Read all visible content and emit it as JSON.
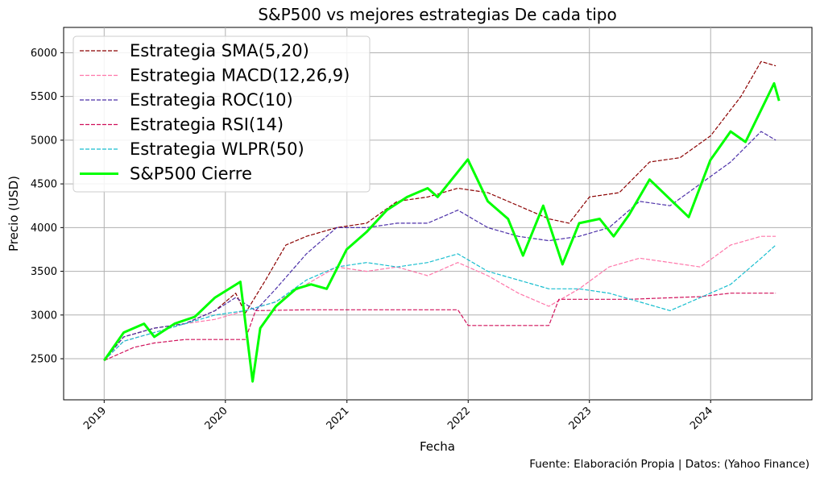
{
  "chart_data": {
    "type": "line",
    "title": "S&P500 vs mejores estrategias De cada tipo",
    "xlabel": "Fecha",
    "ylabel": "Precio (USD)",
    "source": "Fuente: Elaboración Propia | Datos: (Yahoo Finance)",
    "xlim": [
      "2018-09-01",
      "2024-11-01"
    ],
    "ylim": [
      2030,
      6290
    ],
    "x_ticks": [
      "2019",
      "2020",
      "2021",
      "2022",
      "2023",
      "2024"
    ],
    "y_ticks": [
      2500,
      3000,
      3500,
      4000,
      4500,
      5000,
      5500,
      6000
    ],
    "grid": true,
    "legend_position": "top-left",
    "series": [
      {
        "name": "Estrategia SMA(5,20)",
        "color": "#8b0000",
        "style": "dashed",
        "x": [
          "2019-01-01",
          "2019-03-01",
          "2019-06-01",
          "2019-09-01",
          "2019-12-01",
          "2020-02-01",
          "2020-03-01",
          "2020-05-01",
          "2020-07-01",
          "2020-09-01",
          "2020-12-01",
          "2021-03-01",
          "2021-06-01",
          "2021-09-01",
          "2021-12-01",
          "2022-03-01",
          "2022-06-01",
          "2022-09-01",
          "2022-11-01",
          "2023-01-01",
          "2023-04-01",
          "2023-07-01",
          "2023-10-01",
          "2024-01-01",
          "2024-04-01",
          "2024-06-01",
          "2024-07-15"
        ],
        "y": [
          2480,
          2750,
          2850,
          2900,
          3050,
          3250,
          3020,
          3400,
          3800,
          3900,
          4000,
          4050,
          4300,
          4350,
          4450,
          4400,
          4250,
          4100,
          4050,
          4350,
          4400,
          4750,
          4800,
          5050,
          5500,
          5900,
          5850
        ]
      },
      {
        "name": "Estrategia MACD(12,26,9)",
        "color": "#ff77aa",
        "style": "dashed",
        "x": [
          "2019-01-01",
          "2019-03-01",
          "2019-06-01",
          "2019-09-01",
          "2019-12-01",
          "2020-03-01",
          "2020-06-01",
          "2020-09-01",
          "2020-12-01",
          "2021-03-01",
          "2021-06-01",
          "2021-09-01",
          "2021-12-01",
          "2022-03-01",
          "2022-06-01",
          "2022-09-01",
          "2022-12-01",
          "2023-03-01",
          "2023-06-01",
          "2023-09-01",
          "2023-12-01",
          "2024-03-01",
          "2024-06-01",
          "2024-07-15"
        ],
        "y": [
          2480,
          2700,
          2800,
          2900,
          2950,
          3050,
          3150,
          3350,
          3550,
          3500,
          3550,
          3450,
          3600,
          3450,
          3250,
          3100,
          3300,
          3550,
          3650,
          3600,
          3550,
          3800,
          3900,
          3900
        ]
      },
      {
        "name": "Estrategia ROC(10)",
        "color": "#4b2fa8",
        "style": "dashed",
        "x": [
          "2019-01-01",
          "2019-03-01",
          "2019-06-01",
          "2019-09-01",
          "2019-12-01",
          "2020-02-01",
          "2020-04-01",
          "2020-06-01",
          "2020-09-01",
          "2020-12-01",
          "2021-03-01",
          "2021-06-01",
          "2021-09-01",
          "2021-12-01",
          "2022-03-01",
          "2022-06-01",
          "2022-09-01",
          "2022-12-01",
          "2023-03-01",
          "2023-06-01",
          "2023-09-01",
          "2023-12-01",
          "2024-03-01",
          "2024-06-01",
          "2024-07-15"
        ],
        "y": [
          2480,
          2750,
          2850,
          2900,
          3050,
          3200,
          3050,
          3300,
          3700,
          4000,
          4000,
          4050,
          4050,
          4200,
          4000,
          3900,
          3850,
          3900,
          4000,
          4300,
          4250,
          4500,
          4750,
          5100,
          5000
        ]
      },
      {
        "name": "Estrategia RSI(14)",
        "color": "#d0105a",
        "style": "dashed",
        "x": [
          "2019-01-01",
          "2019-04-01",
          "2019-06-01",
          "2019-09-01",
          "2020-03-01",
          "2020-04-01",
          "2020-09-01",
          "2021-12-01",
          "2022-01-01",
          "2022-09-01",
          "2022-10-01",
          "2023-04-01",
          "2023-05-01",
          "2023-12-01",
          "2024-03-01",
          "2024-07-15"
        ],
        "y": [
          2480,
          2630,
          2680,
          2720,
          2720,
          3050,
          3060,
          3060,
          2880,
          2880,
          3180,
          3180,
          3180,
          3210,
          3250,
          3250
        ]
      },
      {
        "name": "Estrategia WLPR(50)",
        "color": "#17becf",
        "style": "dashed",
        "x": [
          "2019-01-01",
          "2019-03-01",
          "2019-06-01",
          "2019-09-01",
          "2019-12-01",
          "2020-03-01",
          "2020-06-01",
          "2020-09-01",
          "2020-12-01",
          "2021-03-01",
          "2021-06-01",
          "2021-09-01",
          "2021-12-01",
          "2022-03-01",
          "2022-06-01",
          "2022-09-01",
          "2022-12-01",
          "2023-03-01",
          "2023-06-01",
          "2023-09-01",
          "2023-11-01",
          "2023-12-01",
          "2024-03-01",
          "2024-06-01",
          "2024-07-15"
        ],
        "y": [
          2480,
          2700,
          2800,
          2900,
          3000,
          3050,
          3150,
          3400,
          3550,
          3600,
          3550,
          3600,
          3700,
          3500,
          3400,
          3300,
          3300,
          3250,
          3150,
          3050,
          3150,
          3200,
          3350,
          3650,
          3800
        ]
      },
      {
        "name": "S&P500 Cierre",
        "color": "#00ff00",
        "style": "solid",
        "x": [
          "2019-01-01",
          "2019-03-01",
          "2019-05-01",
          "2019-06-01",
          "2019-08-01",
          "2019-10-01",
          "2019-12-01",
          "2020-02-15",
          "2020-03-23",
          "2020-04-15",
          "2020-06-01",
          "2020-08-01",
          "2020-09-15",
          "2020-11-01",
          "2020-12-31",
          "2021-03-01",
          "2021-05-01",
          "2021-07-01",
          "2021-09-01",
          "2021-10-01",
          "2021-12-31",
          "2022-03-01",
          "2022-05-01",
          "2022-06-15",
          "2022-08-15",
          "2022-10-12",
          "2022-12-01",
          "2023-02-01",
          "2023-03-15",
          "2023-05-01",
          "2023-07-01",
          "2023-10-27",
          "2023-12-31",
          "2024-03-01",
          "2024-04-15",
          "2024-07-10",
          "2024-07-25"
        ],
        "y": [
          2480,
          2800,
          2900,
          2750,
          2900,
          2980,
          3200,
          3380,
          2240,
          2850,
          3100,
          3300,
          3350,
          3300,
          3750,
          3950,
          4200,
          4350,
          4450,
          4350,
          4780,
          4300,
          4100,
          3680,
          4250,
          3580,
          4050,
          4100,
          3900,
          4150,
          4550,
          4120,
          4770,
          5100,
          4980,
          5650,
          5450
        ]
      }
    ]
  }
}
